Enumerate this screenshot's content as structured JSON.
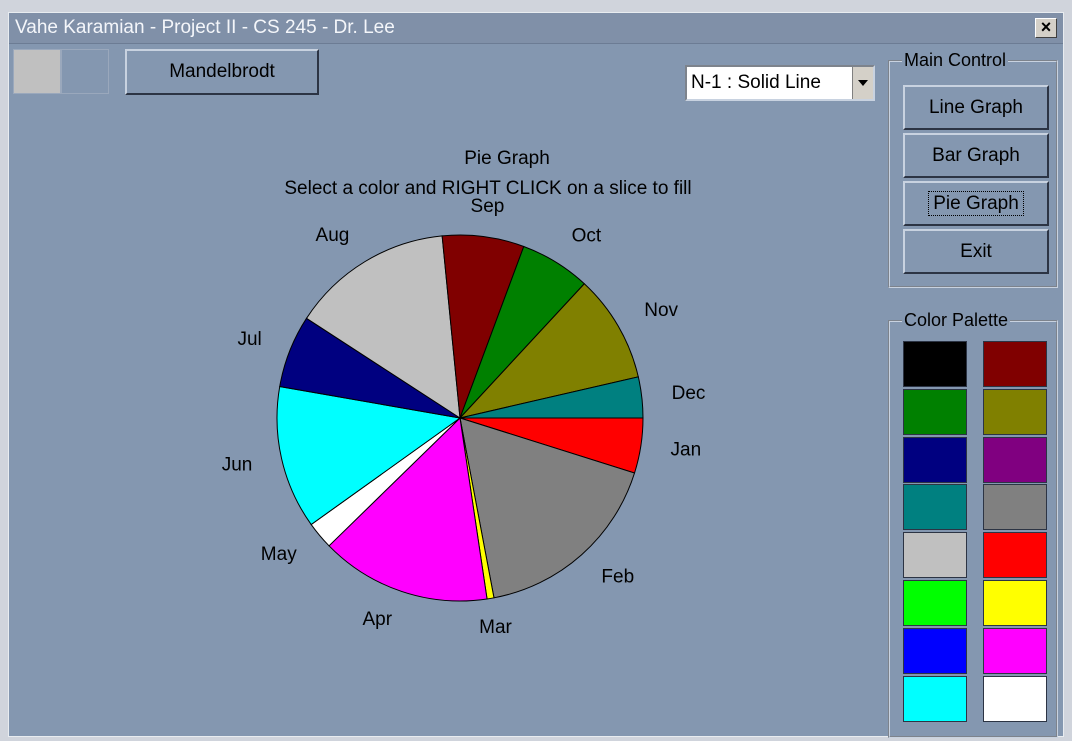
{
  "window": {
    "title": "Vahe Karamian - Project II - CS 245 - Dr. Lee",
    "close": "×"
  },
  "toolbar": {
    "mandelbrodt": "Mandelbrodt",
    "line_style": "N-1 : Solid Line"
  },
  "main_control": {
    "title": "Main Control",
    "buttons": [
      "Line Graph",
      "Bar Graph",
      "Pie Graph",
      "Exit"
    ]
  },
  "color_palette": {
    "title": "Color Palette",
    "left": [
      "#000000",
      "#008000",
      "#000080",
      "#008080",
      "#c0c0c0",
      "#00ff00",
      "#0000ff",
      "#00ffff"
    ],
    "right": [
      "#800000",
      "#808000",
      "#800080",
      "#808080",
      "#ff0000",
      "#ffff00",
      "#ff00ff",
      "#ffffff"
    ]
  },
  "chart_data": {
    "type": "pie",
    "title": "Pie Graph",
    "subtitle": "Select a color and RIGHT CLICK on a slice to fill",
    "categories": [
      "Jan",
      "Feb",
      "Mar",
      "Apr",
      "May",
      "Jun",
      "Jul",
      "Aug",
      "Sep",
      "Oct",
      "Nov",
      "Dec"
    ],
    "values": [
      17.5,
      61.8,
      2.2,
      54.2,
      8.7,
      45.5,
      23.1,
      51.4,
      26,
      22.4,
      34.2,
      13
    ],
    "colors": [
      "#ff0000",
      "#808080",
      "#ffff00",
      "#ff00ff",
      "#ffffff",
      "#00ffff",
      "#000080",
      "#c0c0c0",
      "#800000",
      "#008000",
      "#808000",
      "#008080"
    ]
  }
}
